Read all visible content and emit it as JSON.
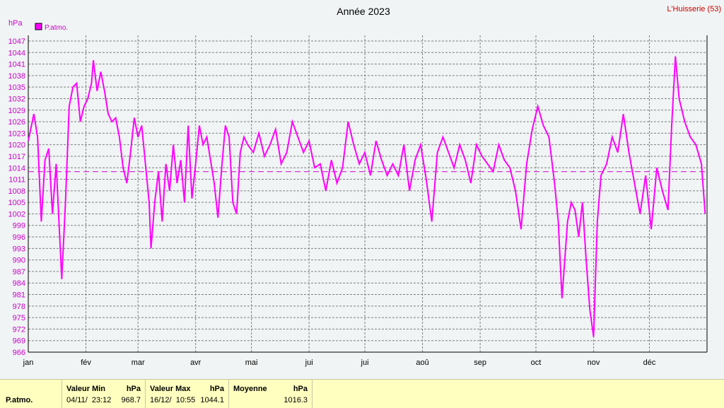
{
  "chart_data": {
    "type": "line",
    "title": "Année 2023",
    "station": "L'Huisserie (53)",
    "y_unit": "hPa",
    "xlim": [
      0,
      365
    ],
    "xticks": [
      {
        "value": 0,
        "label": "jan"
      },
      {
        "value": 31,
        "label": "fév"
      },
      {
        "value": 59,
        "label": "mar"
      },
      {
        "value": 90,
        "label": "avr"
      },
      {
        "value": 120,
        "label": "mai"
      },
      {
        "value": 151,
        "label": "jui"
      },
      {
        "value": 181,
        "label": "jui"
      },
      {
        "value": 212,
        "label": "aoû"
      },
      {
        "value": 243,
        "label": "sep"
      },
      {
        "value": 273,
        "label": "oct"
      },
      {
        "value": 304,
        "label": "nov"
      },
      {
        "value": 334,
        "label": "déc"
      }
    ],
    "ylim": [
      966,
      1047
    ],
    "yticks": [
      966,
      969,
      972,
      975,
      978,
      981,
      984,
      987,
      990,
      993,
      996,
      999,
      1002,
      1005,
      1008,
      1011,
      1014,
      1017,
      1020,
      1023,
      1026,
      1029,
      1032,
      1035,
      1038,
      1041,
      1044,
      1047
    ],
    "grid": true,
    "reference_line": 1013,
    "x": [
      0,
      3,
      5,
      7,
      9,
      11,
      13,
      15,
      17,
      18,
      20,
      22,
      24,
      26,
      28,
      30,
      32,
      34,
      35,
      37,
      39,
      41,
      43,
      45,
      47,
      49,
      51,
      53,
      55,
      57,
      59,
      61,
      63,
      65,
      66,
      68,
      70,
      72,
      74,
      76,
      78,
      80,
      82,
      84,
      86,
      88,
      90,
      92,
      94,
      96,
      98,
      100,
      102,
      104,
      106,
      108,
      110,
      112,
      114,
      116,
      118,
      121,
      124,
      127,
      130,
      133,
      136,
      139,
      142,
      145,
      148,
      151,
      154,
      157,
      160,
      163,
      166,
      169,
      172,
      175,
      178,
      181,
      184,
      187,
      190,
      193,
      196,
      199,
      202,
      205,
      208,
      211,
      214,
      217,
      220,
      223,
      226,
      229,
      232,
      235,
      238,
      241,
      244,
      247,
      250,
      253,
      256,
      259,
      262,
      265,
      268,
      271,
      274,
      277,
      280,
      283,
      285,
      287,
      290,
      292,
      294,
      296,
      298,
      300,
      302,
      304,
      306,
      308,
      311,
      314,
      317,
      320,
      323,
      326,
      329,
      332,
      335,
      338,
      341,
      344,
      346,
      348,
      350,
      353,
      356,
      359,
      362,
      364
    ],
    "series": [
      {
        "name": "P.atmo.",
        "color": "#ff00ff",
        "values": [
          1021,
          1028,
          1022,
          1000,
          1016,
          1019,
          1002,
          1015,
          995,
          985,
          1005,
          1030,
          1035,
          1036,
          1026,
          1030,
          1032,
          1036,
          1042,
          1034,
          1039,
          1034,
          1028,
          1026,
          1027,
          1022,
          1014,
          1010,
          1018,
          1027,
          1022,
          1025,
          1015,
          1005,
          993,
          1005,
          1013,
          1000,
          1015,
          1008,
          1020,
          1010,
          1016,
          1005,
          1025,
          1006,
          1015,
          1025,
          1020,
          1022,
          1016,
          1010,
          1001,
          1014,
          1025,
          1022,
          1005,
          1002,
          1018,
          1022,
          1020,
          1018,
          1023,
          1017,
          1020,
          1024,
          1015,
          1018,
          1026,
          1022,
          1018,
          1021,
          1014,
          1015,
          1008,
          1016,
          1010,
          1014,
          1026,
          1020,
          1015,
          1018,
          1012,
          1021,
          1016,
          1012,
          1015,
          1012,
          1020,
          1008,
          1016,
          1020,
          1011,
          1000,
          1018,
          1022,
          1018,
          1014,
          1020,
          1016,
          1010,
          1020,
          1017,
          1015,
          1013,
          1020,
          1016,
          1014,
          1008,
          998,
          1015,
          1024,
          1030,
          1025,
          1022,
          1010,
          1000,
          980,
          1000,
          1005,
          1003,
          996,
          1005,
          990,
          977,
          970,
          1000,
          1012,
          1015,
          1022,
          1018,
          1028,
          1018,
          1010,
          1002,
          1012,
          998,
          1014,
          1008,
          1003,
          1025,
          1043,
          1032,
          1026,
          1022,
          1020,
          1015,
          1002
        ]
      }
    ]
  },
  "stats": {
    "label": "P.atmo.",
    "min": {
      "header": "Valeur Min",
      "unit": "hPa",
      "date": "04/11/  23:12",
      "value": "968.7"
    },
    "max": {
      "header": "Valeur Max",
      "unit": "hPa",
      "date": "16/12/  10:55",
      "value": "1044.1"
    },
    "mean": {
      "header": "Moyenne",
      "unit": "hPa",
      "value": "1016.3"
    }
  }
}
